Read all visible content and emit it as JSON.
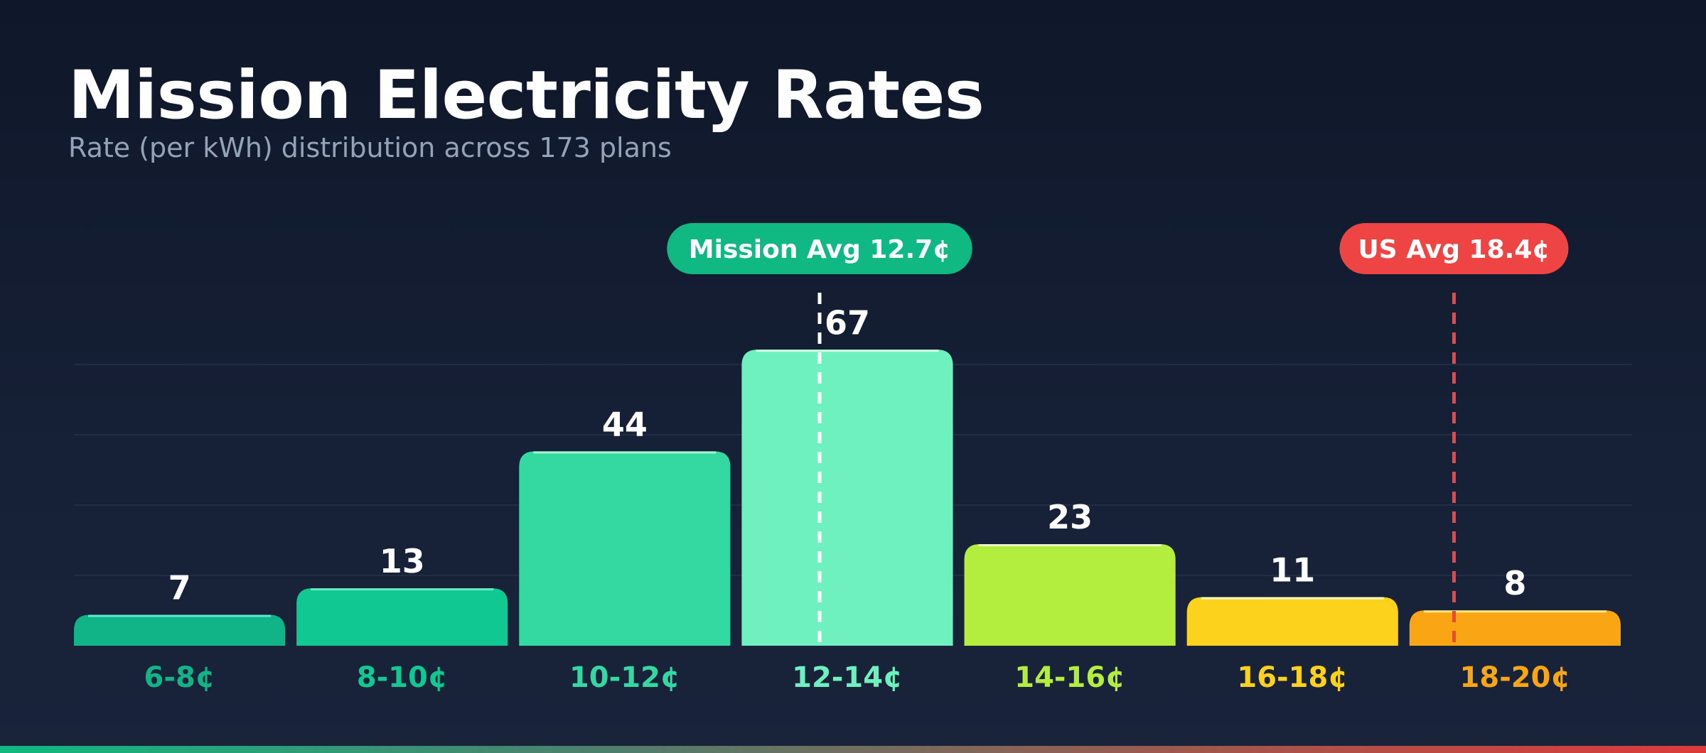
{
  "header": {
    "title": "Mission Electricity Rates",
    "subtitle": "Rate (per kWh) distribution across 173 plans"
  },
  "chart_data": {
    "type": "bar",
    "title": "Mission Electricity Rates",
    "subtitle": "Rate (per kWh) distribution across 173 plans",
    "categories": [
      "6-8¢",
      "8-10¢",
      "10-12¢",
      "12-14¢",
      "14-16¢",
      "16-18¢",
      "18-20¢"
    ],
    "values": [
      7,
      13,
      44,
      67,
      23,
      11,
      8
    ],
    "ylim": [
      0,
      70
    ],
    "grid": true,
    "bar_colors": [
      "#10b487",
      "#10c992",
      "#34d9a2",
      "#6ef0bf",
      "#b3ee3e",
      "#fdd21d",
      "#faa614"
    ],
    "bar_highlight_colors": [
      "#5eead4",
      "#6ee7c2",
      "#a7f3d0",
      "#d1fae5",
      "#ecfccb",
      "#fef9c3",
      "#fde68a"
    ],
    "label_colors": [
      "#10b487",
      "#10c992",
      "#34d9a2",
      "#6ef0bf",
      "#b3ee3e",
      "#fdd21d",
      "#faa614"
    ],
    "reference_lines": [
      {
        "label": "Mission Avg 12.7¢",
        "value": 12.7,
        "color": "#ffffff",
        "badge_color": "#10b981"
      },
      {
        "label": "US Avg 18.4¢",
        "value": 18.4,
        "color": "#ef4444",
        "badge_color": "#ef4444"
      }
    ],
    "x_range": [
      6,
      20
    ]
  }
}
